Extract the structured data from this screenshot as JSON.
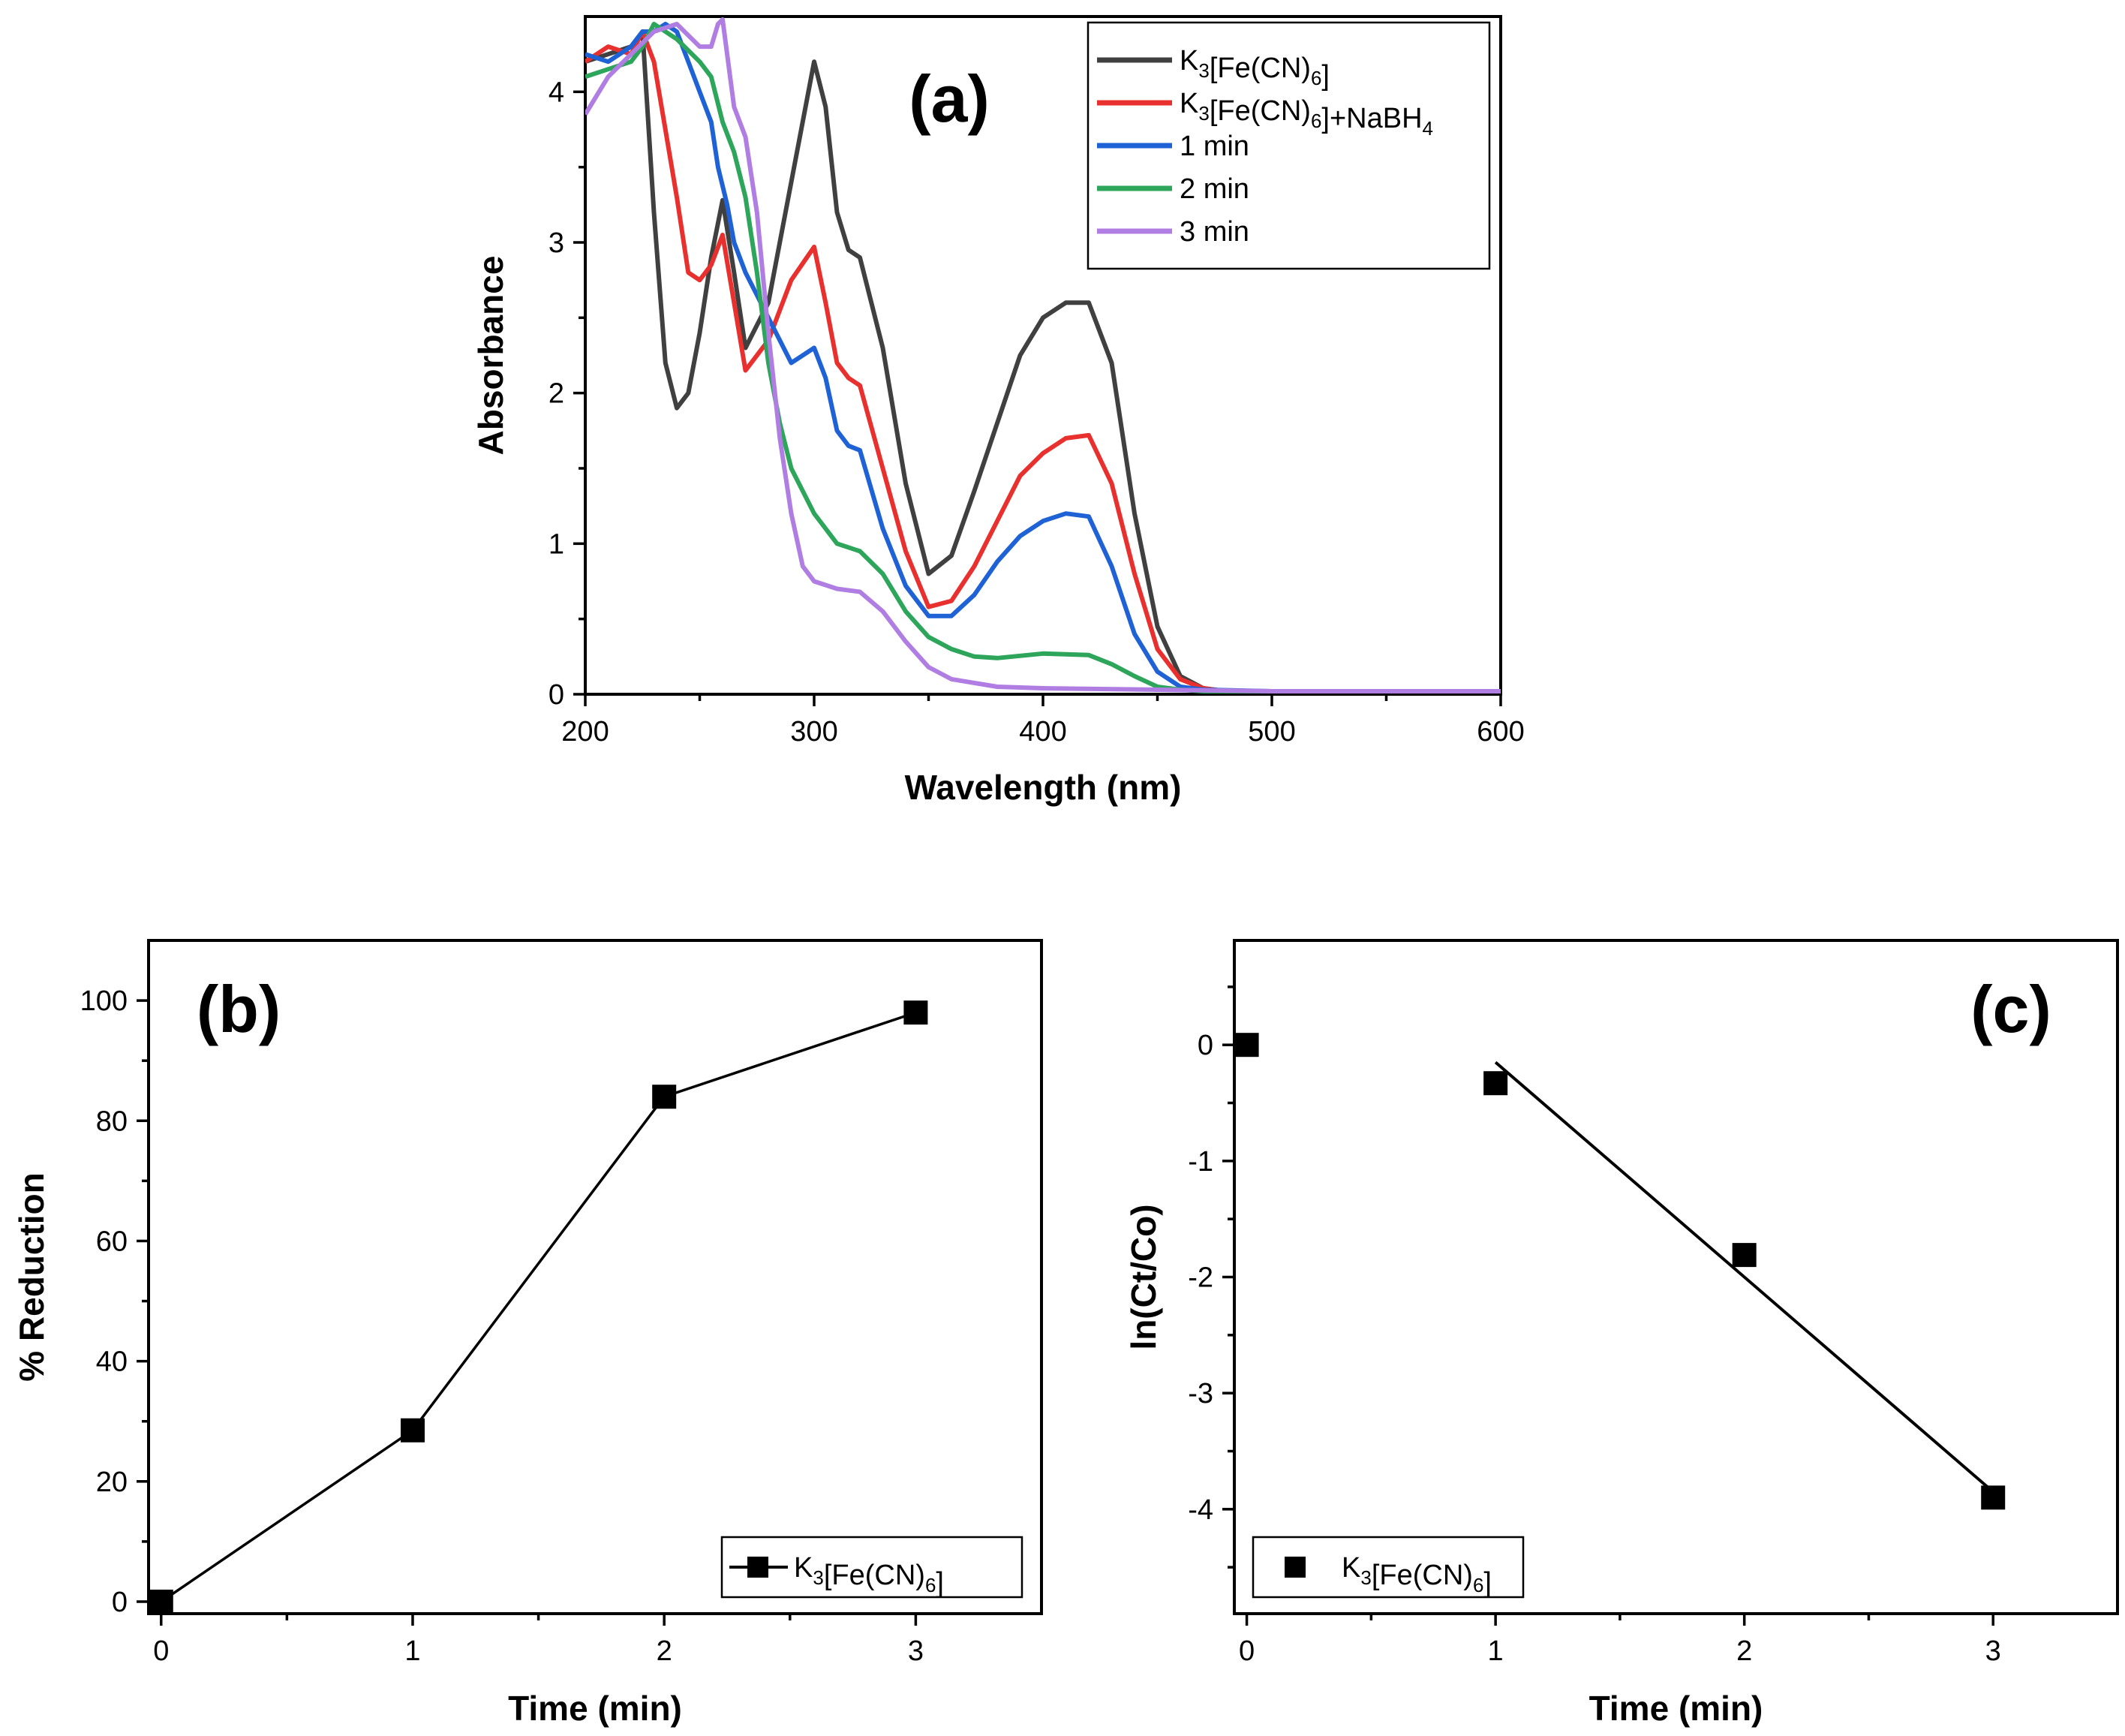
{
  "chart_data": [
    {
      "panel": "(a)",
      "type": "line",
      "xlabel": "Wavelength (nm)",
      "ylabel": "Absorbance",
      "xlim": [
        200,
        600
      ],
      "ylim": [
        0,
        4.5
      ],
      "xticks": [
        200,
        300,
        400,
        500,
        600
      ],
      "yticks": [
        0,
        1,
        2,
        3,
        4
      ],
      "legend_position": "top-right",
      "series": [
        {
          "name": "K3[Fe(CN)6]",
          "legend_parts": [
            [
              "K",
              ""
            ],
            [
              "3",
              "sub"
            ],
            [
              "[Fe(CN)",
              ""
            ],
            [
              "6",
              "sub"
            ],
            [
              "]",
              ""
            ]
          ],
          "color": "#404040",
          "x": [
            200,
            210,
            220,
            225,
            230,
            235,
            240,
            245,
            250,
            255,
            260,
            265,
            270,
            280,
            290,
            300,
            305,
            310,
            315,
            320,
            330,
            340,
            350,
            360,
            370,
            380,
            390,
            400,
            410,
            420,
            430,
            440,
            450,
            460,
            470,
            480,
            500,
            550,
            600
          ],
          "y": [
            4.2,
            4.25,
            4.3,
            4.4,
            3.2,
            2.2,
            1.9,
            2.0,
            2.4,
            2.9,
            3.28,
            2.8,
            2.3,
            2.6,
            3.4,
            4.2,
            3.9,
            3.2,
            2.95,
            2.9,
            2.3,
            1.4,
            0.8,
            0.92,
            1.35,
            1.8,
            2.25,
            2.5,
            2.6,
            2.6,
            2.2,
            1.2,
            0.45,
            0.12,
            0.04,
            0.02,
            0.02,
            0.02,
            0.02
          ]
        },
        {
          "name": "K3[Fe(CN)6]+NaBH4",
          "legend_parts": [
            [
              "K",
              ""
            ],
            [
              "3",
              "sub"
            ],
            [
              "[Fe(CN)",
              ""
            ],
            [
              "6",
              "sub"
            ],
            [
              "]+NaBH",
              ""
            ],
            [
              "4",
              "sub"
            ]
          ],
          "color": "#e8312e",
          "x": [
            200,
            210,
            220,
            225,
            230,
            240,
            245,
            250,
            255,
            260,
            265,
            270,
            280,
            290,
            300,
            305,
            310,
            315,
            320,
            330,
            340,
            350,
            360,
            370,
            380,
            390,
            400,
            410,
            420,
            430,
            440,
            450,
            460,
            470,
            480,
            500,
            550,
            600
          ],
          "y": [
            4.2,
            4.3,
            4.25,
            4.4,
            4.2,
            3.3,
            2.8,
            2.75,
            2.85,
            3.05,
            2.6,
            2.15,
            2.35,
            2.75,
            2.97,
            2.6,
            2.2,
            2.1,
            2.05,
            1.5,
            0.95,
            0.58,
            0.62,
            0.85,
            1.15,
            1.45,
            1.6,
            1.7,
            1.72,
            1.4,
            0.8,
            0.3,
            0.1,
            0.04,
            0.02,
            0.02,
            0.02,
            0.02
          ]
        },
        {
          "name": "1 min",
          "legend_parts": [
            [
              "1 min",
              ""
            ]
          ],
          "color": "#1e62d6",
          "x": [
            200,
            210,
            220,
            225,
            230,
            235,
            240,
            245,
            250,
            255,
            258,
            262,
            265,
            270,
            275,
            280,
            290,
            295,
            300,
            305,
            310,
            315,
            320,
            330,
            340,
            350,
            360,
            370,
            380,
            390,
            400,
            410,
            420,
            430,
            440,
            450,
            460,
            470,
            500,
            550,
            600
          ],
          "y": [
            4.25,
            4.2,
            4.3,
            4.4,
            4.4,
            4.45,
            4.4,
            4.2,
            4.0,
            3.8,
            3.5,
            3.25,
            3.0,
            2.8,
            2.65,
            2.5,
            2.2,
            2.25,
            2.3,
            2.1,
            1.75,
            1.65,
            1.62,
            1.1,
            0.72,
            0.52,
            0.52,
            0.66,
            0.88,
            1.05,
            1.15,
            1.2,
            1.18,
            0.85,
            0.4,
            0.15,
            0.05,
            0.03,
            0.02,
            0.02,
            0.02
          ]
        },
        {
          "name": "2 min",
          "legend_parts": [
            [
              "2 min",
              ""
            ]
          ],
          "color": "#2da55a",
          "x": [
            200,
            210,
            220,
            225,
            230,
            240,
            250,
            255,
            260,
            265,
            270,
            275,
            280,
            285,
            290,
            300,
            310,
            320,
            330,
            340,
            350,
            360,
            370,
            380,
            400,
            420,
            430,
            440,
            450,
            460,
            470,
            500,
            550,
            600
          ],
          "y": [
            4.1,
            4.15,
            4.2,
            4.3,
            4.45,
            4.35,
            4.2,
            4.1,
            3.8,
            3.6,
            3.3,
            2.8,
            2.2,
            1.8,
            1.5,
            1.2,
            1.0,
            0.95,
            0.8,
            0.55,
            0.38,
            0.3,
            0.25,
            0.24,
            0.27,
            0.26,
            0.2,
            0.12,
            0.05,
            0.03,
            0.02,
            0.02,
            0.02,
            0.02
          ]
        },
        {
          "name": "3 min",
          "legend_parts": [
            [
              "3 min",
              ""
            ]
          ],
          "color": "#b07ee3",
          "x": [
            200,
            210,
            220,
            230,
            240,
            250,
            255,
            258,
            260,
            265,
            270,
            275,
            280,
            285,
            290,
            295,
            300,
            310,
            320,
            330,
            340,
            350,
            360,
            380,
            400,
            450,
            500,
            600
          ],
          "y": [
            3.85,
            4.1,
            4.25,
            4.4,
            4.45,
            4.3,
            4.3,
            4.45,
            4.48,
            3.9,
            3.7,
            3.2,
            2.4,
            1.7,
            1.2,
            0.85,
            0.75,
            0.7,
            0.68,
            0.55,
            0.35,
            0.18,
            0.1,
            0.05,
            0.04,
            0.03,
            0.02,
            0.02
          ]
        }
      ]
    },
    {
      "panel": "(b)",
      "type": "line",
      "xlabel": "Time (min)",
      "ylabel": "% Reduction",
      "xlim": [
        -0.05,
        3.5
      ],
      "ylim": [
        -2,
        110
      ],
      "xticks": [
        0,
        1,
        2,
        3
      ],
      "yticks": [
        0,
        20,
        40,
        60,
        80,
        100
      ],
      "legend_position": "bottom-right",
      "series": [
        {
          "name": "K3[Fe(CN)6]",
          "legend_parts": [
            [
              "K",
              ""
            ],
            [
              "3",
              "sub"
            ],
            [
              "[Fe(CN)",
              ""
            ],
            [
              "6",
              "sub"
            ],
            [
              "]",
              ""
            ]
          ],
          "color": "#000000",
          "x": [
            0,
            1,
            2,
            3
          ],
          "y": [
            0,
            28.5,
            84,
            98
          ]
        }
      ]
    },
    {
      "panel": "(c)",
      "type": "scatter",
      "xlabel": "Time (min)",
      "ylabel": "ln(Ct/Co)",
      "xlim": [
        -0.05,
        3.5
      ],
      "ylim": [
        -4.9,
        0.9
      ],
      "xticks": [
        0,
        1,
        2,
        3
      ],
      "yticks": [
        0,
        -1,
        -2,
        -3,
        -4
      ],
      "legend_position": "bottom-left",
      "series": [
        {
          "name": "K3[Fe(CN)6]",
          "legend_parts": [
            [
              "K",
              ""
            ],
            [
              "3",
              "sub"
            ],
            [
              "[Fe(CN)",
              ""
            ],
            [
              "6",
              "sub"
            ],
            [
              "]",
              ""
            ]
          ],
          "color": "#000000",
          "x": [
            0,
            1,
            2,
            3
          ],
          "y": [
            0,
            -0.33,
            -1.81,
            -3.9
          ]
        }
      ],
      "fit_line": {
        "x": [
          1,
          3
        ],
        "y": [
          -0.15,
          -3.85
        ]
      }
    }
  ]
}
